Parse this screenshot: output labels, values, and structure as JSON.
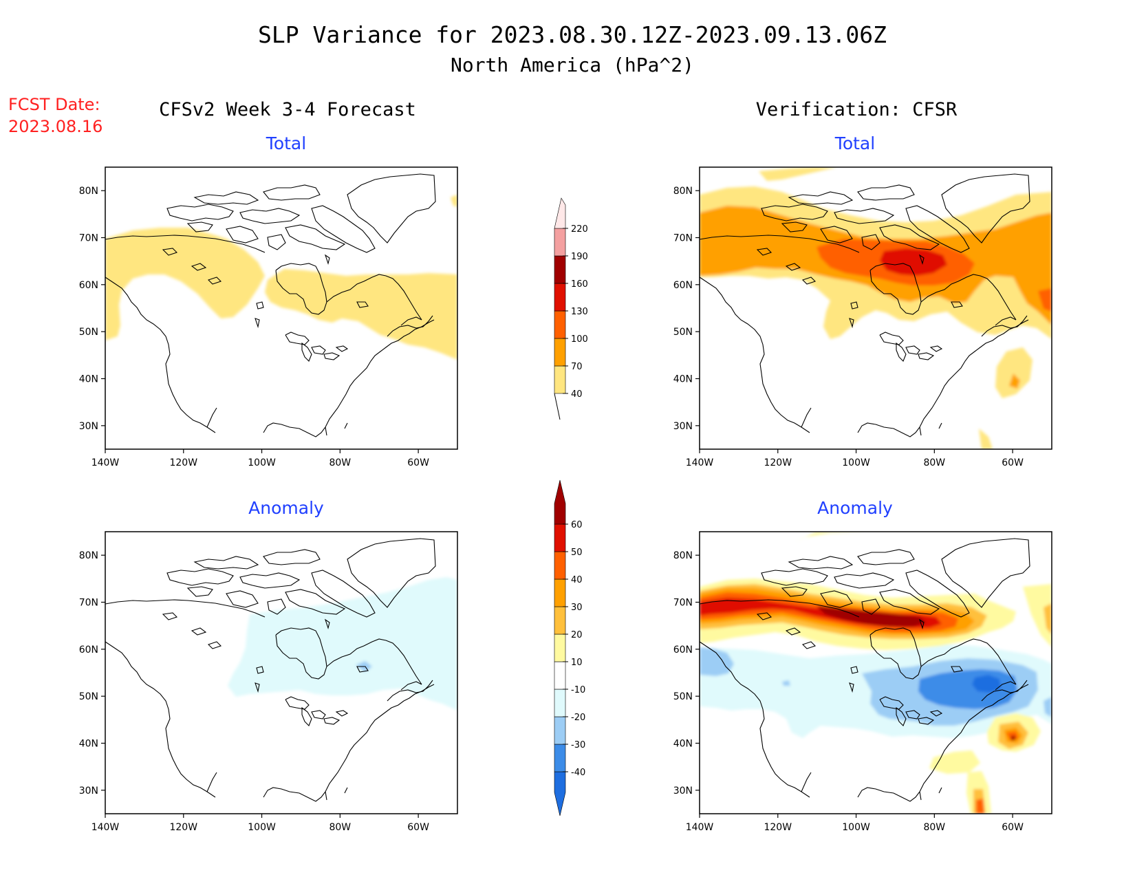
{
  "title": {
    "line1": "SLP Variance for 2023.08.30.12Z-2023.09.13.06Z",
    "line2": "North America (hPa^2)"
  },
  "fcst_date": {
    "label": "FCST Date:",
    "value": "2023.08.16"
  },
  "columns": {
    "left": "CFSv2 Week 3-4 Forecast",
    "right": "Verification: CFSR"
  },
  "panel_titles": {
    "total": "Total",
    "anomaly": "Anomaly"
  },
  "axes": {
    "lat_labels": [
      "80N",
      "70N",
      "60N",
      "50N",
      "40N",
      "30N"
    ],
    "lon_labels": [
      "140W",
      "120W",
      "100W",
      "80W",
      "60W"
    ]
  },
  "colorbar_total": {
    "labels": [
      "40",
      "70",
      "100",
      "130",
      "160",
      "190",
      "220"
    ],
    "colors": [
      "#ffe680",
      "#ffa000",
      "#ff6000",
      "#e01000",
      "#a00000",
      "#f4a0a0",
      "#ffe8e8"
    ]
  },
  "colorbar_anomaly": {
    "labels": [
      "-40",
      "-30",
      "-20",
      "-10",
      "10",
      "20",
      "30",
      "40",
      "50",
      "60"
    ],
    "colors": [
      "#1e6ee0",
      "#3c8ce8",
      "#9ccdf5",
      "#e0fafc",
      "#ffffff",
      "#fffaa0",
      "#ffc03c",
      "#ffa000",
      "#ff6000",
      "#e01000",
      "#a00000"
    ]
  },
  "chart_data": [
    {
      "type": "heatmap",
      "title": "Total",
      "panel": "CFSv2 Week 3-4 Forecast",
      "x_range": [
        "140W",
        "50W"
      ],
      "y_range": [
        "25N",
        "85N"
      ],
      "levels": [
        40,
        70,
        100,
        130,
        160,
        190,
        220
      ],
      "features": [
        {
          "region": "northwest Canada / Yukon",
          "approx_value": 40
        },
        {
          "region": "Hudson Bay",
          "approx_value": 40
        },
        {
          "region": "Quebec / Labrador / Maritimes",
          "approx_value": 40
        }
      ]
    },
    {
      "type": "heatmap",
      "title": "Total",
      "panel": "Verification: CFSR",
      "x_range": [
        "140W",
        "50W"
      ],
      "y_range": [
        "25N",
        "85N"
      ],
      "levels": [
        40,
        70,
        100,
        130,
        160,
        190,
        220
      ],
      "features": [
        {
          "region": "Hudson Bay / northern Quebec",
          "approx_value": 130
        },
        {
          "region": "Arctic band 60N-70N",
          "approx_value": 70
        },
        {
          "region": "Labrador Sea",
          "approx_value": 70
        },
        {
          "region": "western Atlantic",
          "approx_value": 70
        }
      ]
    },
    {
      "type": "heatmap",
      "title": "Anomaly",
      "panel": "CFSv2 Week 3-4 Forecast",
      "x_range": [
        "140W",
        "50W"
      ],
      "y_range": [
        "25N",
        "85N"
      ],
      "levels": [
        -40,
        -30,
        -20,
        -10,
        10,
        20,
        30,
        40,
        50,
        60
      ],
      "features": [
        {
          "region": "central and eastern Canada",
          "approx_value": -10
        },
        {
          "region": "Hudson Bay east",
          "approx_value": -20
        }
      ]
    },
    {
      "type": "heatmap",
      "title": "Anomaly",
      "panel": "Verification: CFSR",
      "x_range": [
        "140W",
        "50W"
      ],
      "y_range": [
        "25N",
        "85N"
      ],
      "levels": [
        -40,
        -30,
        -20,
        -10,
        10,
        20,
        30,
        40,
        50,
        60
      ],
      "features": [
        {
          "region": "northern Canada band 60N-70N",
          "approx_value": 60
        },
        {
          "region": "Quebec / Gulf of St. Lawrence",
          "approx_value": -40
        },
        {
          "region": "Pacific Northwest coast",
          "approx_value": -20
        },
        {
          "region": "western Atlantic near 38N 58W",
          "approx_value": 40
        }
      ]
    }
  ]
}
